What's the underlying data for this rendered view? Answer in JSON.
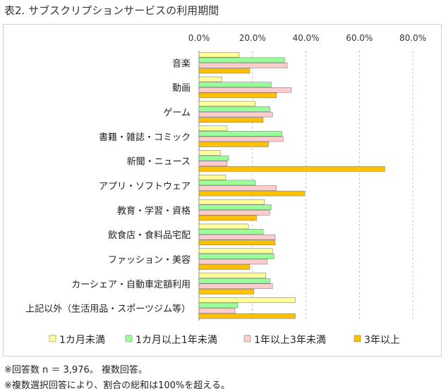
{
  "title": "表2. サブスクリプションサービスの利用期間",
  "notes": [
    "※回答数 n ＝ 3,976。 複数回答。",
    "※複数選択回答により、割合の総和は100%を超える。"
  ],
  "colors": {
    "lt1m": "#ffff99",
    "m1to1y": "#99ff99",
    "y1to3y": "#ffcccc",
    "ge3y": "#ffc000",
    "grid": "#bfbfbf",
    "frame": "#cfcfcf"
  },
  "chart_data": {
    "type": "bar",
    "orientation": "horizontal",
    "x_ticks": [
      "0.0%",
      "20.0%",
      "40.0%",
      "60.0%",
      "80.0%"
    ],
    "xlim": [
      0,
      80
    ],
    "categories": [
      "音楽",
      "動画",
      "ゲーム",
      "書籍・雑誌・コミック",
      "新聞・ニュース",
      "アプリ・ソフトウェア",
      "教育・学習・資格",
      "飲食店・食料品宅配",
      "ファッション・美容",
      "カーシェア・自動車定額利用",
      "上記以外（生活用品・スポーツジム等）"
    ],
    "series": [
      {
        "name": "1カ月未満",
        "color_key": "lt1m",
        "values": [
          15.0,
          8.5,
          21.0,
          10.5,
          8.0,
          10.0,
          24.5,
          18.5,
          27.5,
          25.0,
          36.0
        ]
      },
      {
        "name": "1カ月以上1年未満",
        "color_key": "m1to1y",
        "values": [
          32.0,
          27.0,
          26.5,
          31.0,
          11.0,
          21.0,
          27.0,
          24.0,
          28.0,
          26.5,
          14.5
        ]
      },
      {
        "name": "1年以上3年未満",
        "color_key": "y1to3y",
        "values": [
          33.0,
          34.5,
          27.5,
          31.5,
          10.5,
          29.0,
          26.5,
          28.5,
          25.5,
          27.5,
          13.5
        ]
      },
      {
        "name": "3年以上",
        "color_key": "ge3y",
        "values": [
          19.0,
          29.0,
          24.0,
          26.0,
          69.5,
          39.5,
          21.5,
          28.5,
          19.0,
          20.5,
          36.0
        ]
      }
    ],
    "grid": true,
    "legend_position": "bottom"
  }
}
